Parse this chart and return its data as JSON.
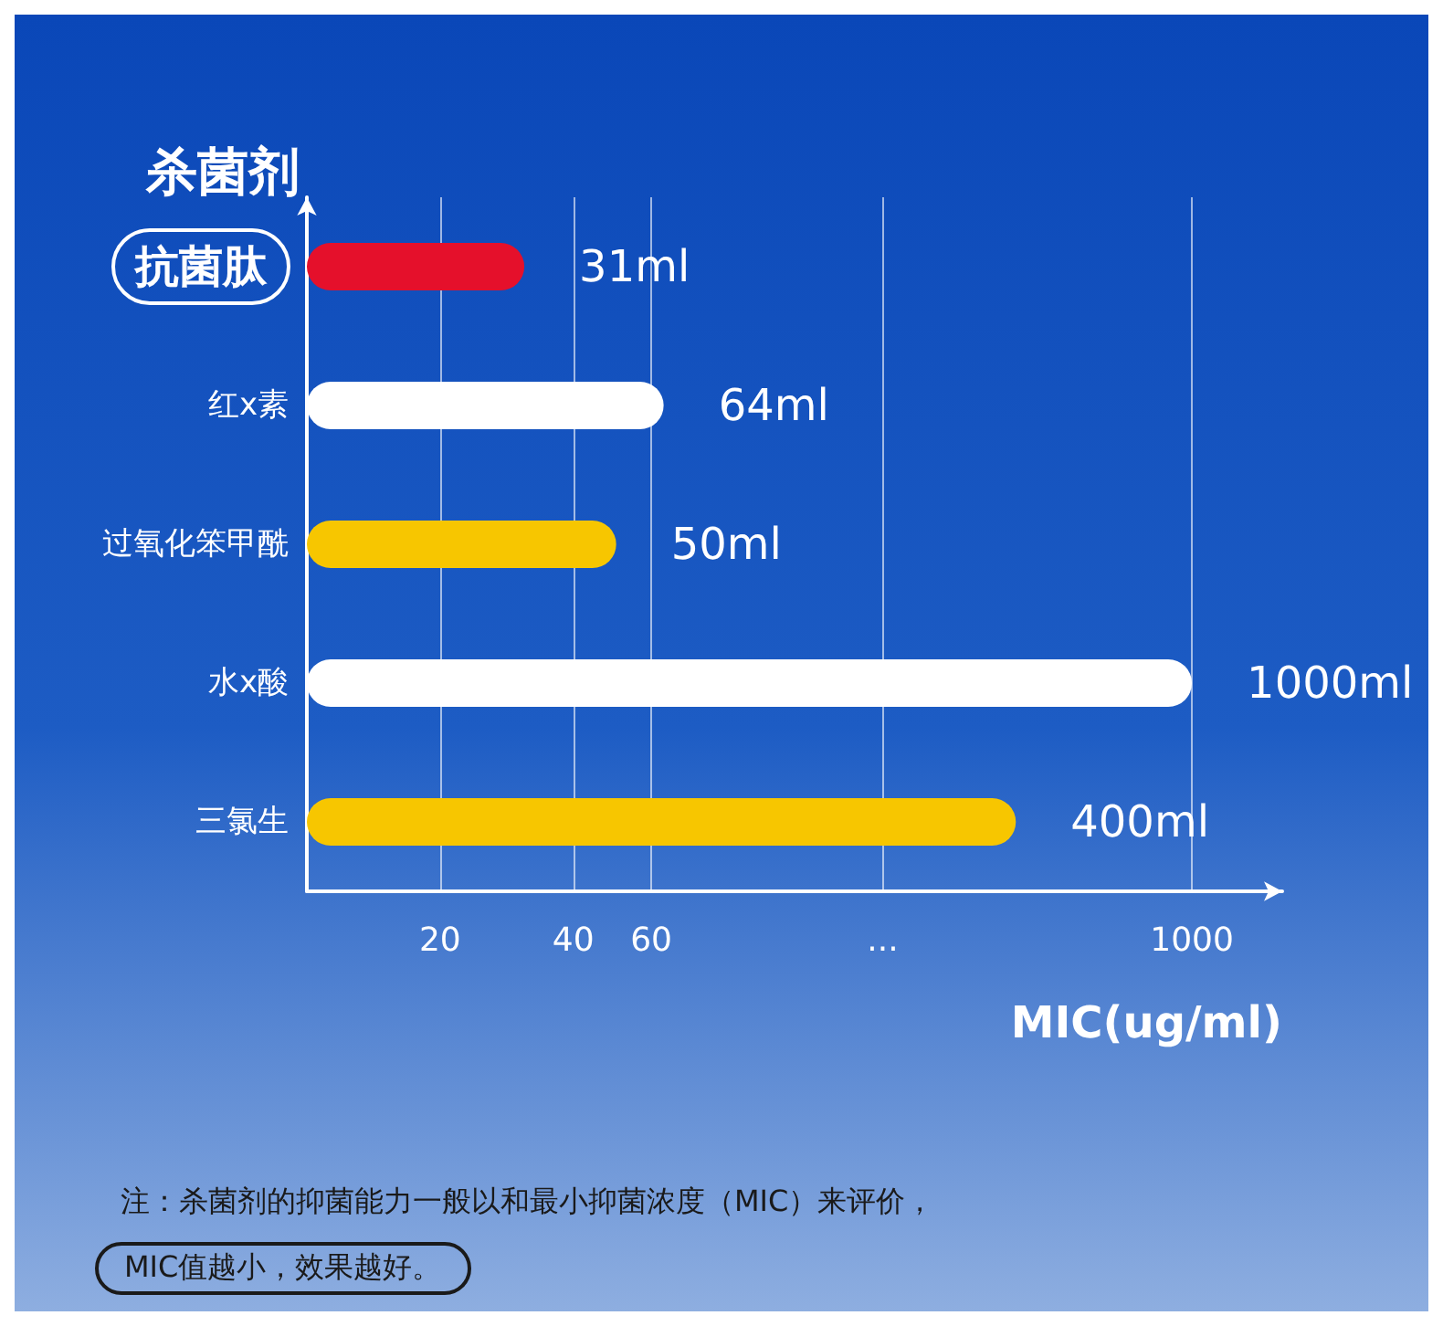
{
  "chart_data": {
    "type": "bar",
    "orientation": "horizontal",
    "ylabel": "杀菌剂",
    "xlabel": "MIC(ug/ml)",
    "categories": [
      "抗菌肽",
      "红x素",
      "过氧化笨甲酰",
      "水x酸",
      "三氯生"
    ],
    "values": [
      31,
      64,
      50,
      1000,
      400
    ],
    "colors": [
      "#e5102b",
      "#ffffff",
      "#f7c600",
      "#ffffff",
      "#f7c600"
    ],
    "value_labels": [
      "31ml",
      "64ml",
      "50ml",
      "1000ml",
      "400ml"
    ],
    "log": "x",
    "xlim": [
      10,
      1600
    ],
    "xticks": [
      20,
      40,
      60,
      {
        "value": 200,
        "label": "..."
      },
      1000
    ],
    "grid": "x",
    "annotations": [
      "注：杀菌剂的抑菌能力一般以和最小抑菌浓度（MIC）来评价，",
      "MIC值越小，效果越好。"
    ]
  }
}
